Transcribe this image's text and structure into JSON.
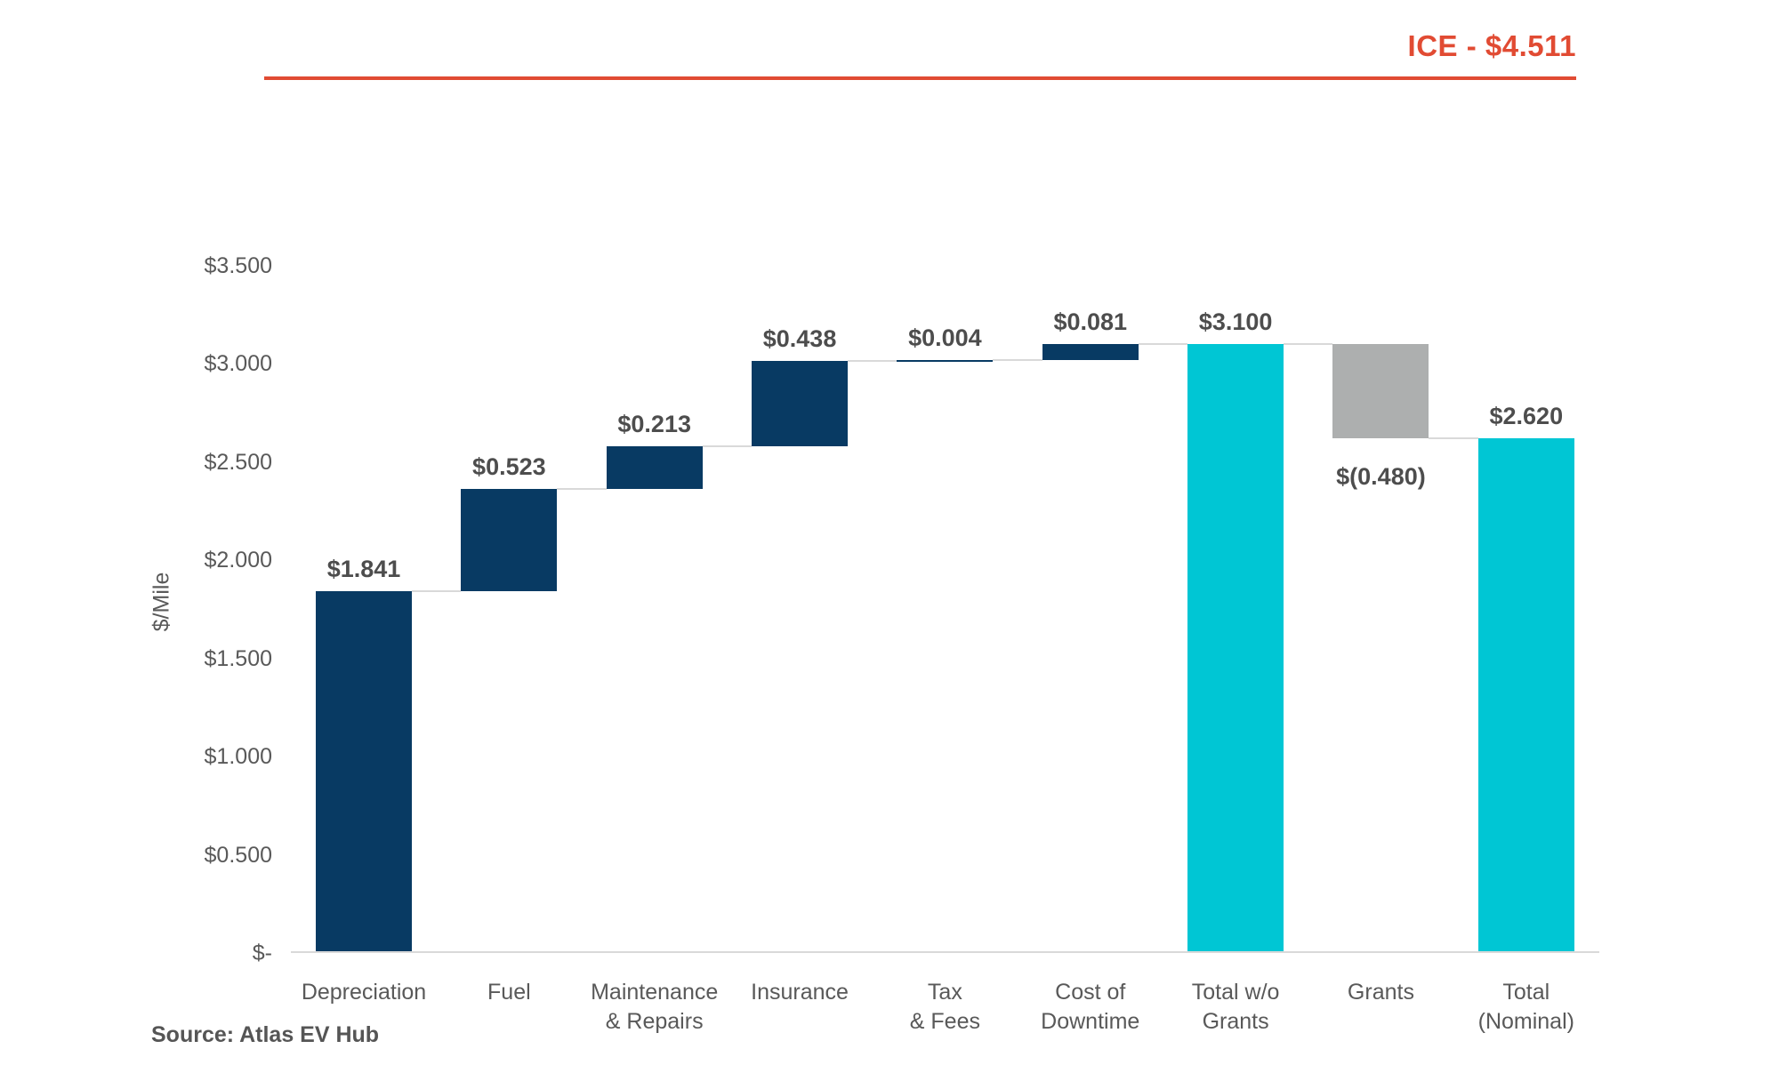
{
  "source": {
    "text": "Source: Atlas EV Hub"
  },
  "chart_data": {
    "type": "bar",
    "subtype": "waterfall",
    "title": "",
    "xlabel": "",
    "ylabel": "$/Mile",
    "ylim": [
      0,
      3.5
    ],
    "ytick_step": 0.5,
    "ytick_labels": [
      "$3.500",
      "$3.000",
      "$2.500",
      "$2.000",
      "$1.500",
      "$1.000",
      "$0.500",
      "$-"
    ],
    "grid": false,
    "legend_position": "none",
    "categories": [
      "Depreciation",
      "Fuel",
      "Maintenance & Repairs",
      "Insurance",
      "Tax & Fees",
      "Cost of Downtime",
      "Total w/o Grants",
      "Grants",
      "Total (Nominal)"
    ],
    "bars": [
      {
        "category": "Depreciation",
        "lines": [
          "Depreciation"
        ],
        "value": 1.841,
        "label": "$1.841",
        "kind": "increase"
      },
      {
        "category": "Fuel",
        "lines": [
          "Fuel"
        ],
        "value": 0.523,
        "label": "$0.523",
        "kind": "increase"
      },
      {
        "category": "Maintenance & Repairs",
        "lines": [
          "Maintenance",
          "& Repairs"
        ],
        "value": 0.213,
        "label": "$0.213",
        "kind": "increase"
      },
      {
        "category": "Insurance",
        "lines": [
          "Insurance"
        ],
        "value": 0.438,
        "label": "$0.438",
        "kind": "increase"
      },
      {
        "category": "Tax & Fees",
        "lines": [
          "Tax",
          "& Fees"
        ],
        "value": 0.004,
        "label": "$0.004",
        "kind": "increase"
      },
      {
        "category": "Cost of Downtime",
        "lines": [
          "Cost of",
          "Downtime"
        ],
        "value": 0.081,
        "label": "$0.081",
        "kind": "increase"
      },
      {
        "category": "Total w/o Grants",
        "lines": [
          "Total w/o",
          "Grants"
        ],
        "value": 3.1,
        "label": "$3.100",
        "kind": "total"
      },
      {
        "category": "Grants",
        "lines": [
          "Grants"
        ],
        "value": -0.48,
        "label": "$(0.480)",
        "kind": "decrease"
      },
      {
        "category": "Total (Nominal)",
        "lines": [
          "Total",
          "(Nominal)"
        ],
        "value": 2.62,
        "label": "$2.620",
        "kind": "total"
      }
    ],
    "reference_line": {
      "label": "ICE - $4.511",
      "value": 4.511
    },
    "colors": {
      "increase": "#083A63",
      "decrease": "#ADAFAF",
      "total": "#00C6D4",
      "reference": "#E14B33",
      "axis": "#D9D9D9",
      "text": "#595959",
      "value_label": "#4D4D4D"
    }
  }
}
